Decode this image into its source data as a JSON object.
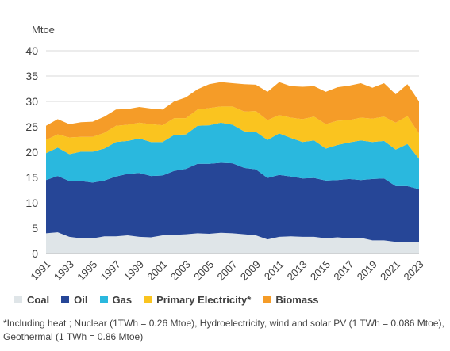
{
  "chart_data": {
    "type": "area",
    "stacked": true,
    "ylabel": "Mtoe",
    "ylim": [
      0,
      40
    ],
    "yticks": [
      0,
      5,
      10,
      15,
      20,
      25,
      30,
      35,
      40
    ],
    "grid": "horizontal",
    "legend_position": "bottom",
    "x": [
      1991,
      1992,
      1993,
      1994,
      1995,
      1996,
      1997,
      1998,
      1999,
      2000,
      2001,
      2002,
      2003,
      2004,
      2005,
      2006,
      2007,
      2008,
      2009,
      2010,
      2011,
      2012,
      2013,
      2014,
      2015,
      2016,
      2017,
      2018,
      2019,
      2020,
      2021,
      2022,
      2023
    ],
    "xtick_labels": [
      "1991",
      "1993",
      "1995",
      "1997",
      "1999",
      "2001",
      "2003",
      "2005",
      "2007",
      "2009",
      "2011",
      "2013",
      "2015",
      "2017",
      "2019",
      "2021",
      "2023"
    ],
    "series": [
      {
        "name": "Coal",
        "color": "#dfe5e8",
        "values": [
          4.0,
          4.2,
          3.3,
          3.0,
          3.0,
          3.4,
          3.4,
          3.6,
          3.3,
          3.2,
          3.6,
          3.7,
          3.8,
          4.0,
          3.9,
          4.1,
          4.0,
          3.8,
          3.6,
          2.8,
          3.3,
          3.4,
          3.3,
          3.3,
          3.0,
          3.2,
          3.0,
          3.1,
          2.6,
          2.6,
          2.3,
          2.3,
          2.2
        ]
      },
      {
        "name": "Oil",
        "color": "#264697",
        "values": [
          10.5,
          11.1,
          11.0,
          11.3,
          11.0,
          11.0,
          11.8,
          12.1,
          12.6,
          12.1,
          11.8,
          12.6,
          12.9,
          13.7,
          13.8,
          13.8,
          13.8,
          13.1,
          13.0,
          12.1,
          12.2,
          11.8,
          11.5,
          11.6,
          11.4,
          11.3,
          11.7,
          11.4,
          12.1,
          12.2,
          11.0,
          11.0,
          10.5
        ]
      },
      {
        "name": "Gas",
        "color": "#2ab8de",
        "values": [
          5.3,
          5.6,
          5.3,
          5.8,
          6.1,
          6.3,
          6.8,
          6.5,
          6.8,
          6.7,
          6.6,
          7.1,
          6.8,
          7.5,
          7.6,
          7.9,
          7.6,
          7.2,
          7.4,
          7.5,
          8.2,
          7.6,
          7.2,
          7.4,
          6.3,
          6.9,
          7.2,
          7.8,
          7.3,
          7.4,
          7.2,
          8.3,
          6.0
        ]
      },
      {
        "name": "Primary Electricity*",
        "color": "#fac41f",
        "values": [
          2.6,
          2.6,
          3.3,
          2.9,
          2.9,
          3.1,
          3.2,
          3.2,
          3.1,
          3.5,
          3.3,
          3.3,
          3.2,
          3.2,
          3.4,
          3.2,
          3.6,
          3.9,
          4.1,
          3.9,
          3.6,
          4.0,
          4.5,
          4.7,
          4.8,
          4.8,
          4.4,
          4.5,
          4.6,
          4.8,
          5.3,
          5.5,
          5.0
        ]
      },
      {
        "name": "Biomass",
        "color": "#f59c28",
        "values": [
          2.8,
          3.0,
          2.6,
          2.9,
          3.0,
          3.2,
          3.2,
          3.1,
          3.1,
          3.1,
          3.1,
          3.3,
          4.1,
          4.0,
          4.7,
          4.8,
          4.6,
          5.4,
          5.2,
          5.6,
          6.5,
          6.2,
          6.4,
          6.0,
          6.4,
          6.6,
          6.8,
          6.8,
          6.1,
          6.6,
          5.6,
          6.3,
          6.3
        ]
      }
    ]
  },
  "footnote": "*Including heat ; Nuclear (1TWh = 0.26 Mtoe), Hydroelectricity,  wind and solar PV (1 TWh = 0.086 Mtoe), Geothermal (1 TWh = 0.86 Mtoe)"
}
